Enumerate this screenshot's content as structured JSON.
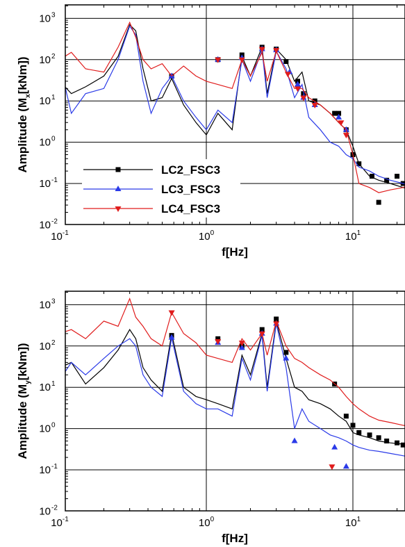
{
  "chart_data": [
    {
      "type": "line",
      "xscale": "log",
      "yscale": "log",
      "xlabel": "f[Hz]",
      "ylabel_main": "Amplitude (M",
      "ylabel_sub": "x",
      "ylabel_tail": "[kNm])",
      "xlim": [
        0.1,
        25
      ],
      "ylim": [
        0.01,
        2000
      ],
      "grid": true,
      "legend": "left-center",
      "x_ticks": [
        {
          "base": "10",
          "exp": "-1",
          "value": 0.1
        },
        {
          "base": "10",
          "exp": "0",
          "value": 1
        },
        {
          "base": "10",
          "exp": "1",
          "value": 10
        }
      ],
      "y_ticks": [
        {
          "base": "10",
          "exp": "-2",
          "value": 0.01
        },
        {
          "base": "10",
          "exp": "-1",
          "value": 0.1
        },
        {
          "base": "10",
          "exp": "0",
          "value": 1
        },
        {
          "base": "10",
          "exp": "1",
          "value": 10
        },
        {
          "base": "10",
          "exp": "2",
          "value": 100
        },
        {
          "base": "10",
          "exp": "3",
          "value": 1000
        }
      ],
      "series": [
        {
          "name": "LC2_FSC3",
          "color": "#000000",
          "marker": "square",
          "x": [
            0.1,
            0.12,
            0.15,
            0.2,
            0.25,
            0.3,
            0.33,
            0.37,
            0.42,
            0.5,
            0.58,
            0.7,
            0.85,
            1.0,
            1.2,
            1.5,
            1.75,
            2.0,
            2.4,
            2.6,
            3.0,
            3.5,
            4.0,
            4.5,
            5.0,
            6.0,
            7.0,
            8.0,
            9.0,
            10.0,
            11.0,
            13.0,
            15.0,
            18.0,
            22.0,
            25.0
          ],
          "y": [
            30,
            15,
            22,
            40,
            120,
            700,
            500,
            60,
            10,
            12,
            35,
            8,
            3,
            1.5,
            5,
            2,
            120,
            40,
            200,
            15,
            180,
            100,
            30,
            50,
            10,
            8,
            5,
            3,
            2,
            0.8,
            0.3,
            0.15,
            0.12,
            0.1,
            0.08,
            0.07
          ],
          "markers_x": [
            0.58,
            1.2,
            1.75,
            2.4,
            3.0,
            3.5,
            4.2,
            4.6,
            5.5,
            7.5,
            8.0,
            9.0,
            10.0,
            11.0,
            13.5,
            15.0,
            17.0,
            20.0,
            22.0
          ],
          "markers_y": [
            40,
            100,
            130,
            200,
            180,
            90,
            30,
            15,
            10,
            5,
            5,
            2,
            0.5,
            0.3,
            0.15,
            0.035,
            0.12,
            0.15,
            0.1
          ]
        },
        {
          "name": "LC3_FSC3",
          "color": "#2a3ae8",
          "marker": "triangle-up",
          "x": [
            0.1,
            0.12,
            0.15,
            0.2,
            0.25,
            0.3,
            0.33,
            0.37,
            0.42,
            0.5,
            0.58,
            0.7,
            0.85,
            1.0,
            1.2,
            1.5,
            1.75,
            2.0,
            2.4,
            2.6,
            3.0,
            3.5,
            4.0,
            4.5,
            5.0,
            6.0,
            7.0,
            8.0,
            9.0,
            10.0,
            11.0,
            13.0,
            15.0,
            18.0,
            22.0,
            25.0
          ],
          "y": [
            80,
            5,
            15,
            20,
            100,
            650,
            400,
            30,
            5,
            20,
            40,
            10,
            4,
            2,
            6,
            3,
            100,
            30,
            170,
            12,
            160,
            60,
            12,
            25,
            4,
            2,
            1,
            0.8,
            0.5,
            0.4,
            0.25,
            0.2,
            0.15,
            0.12,
            0.1,
            0.09
          ],
          "markers_x": [
            0.58,
            1.2,
            1.75,
            2.4,
            3.0,
            3.7,
            4.2,
            4.6,
            5.5,
            8.0,
            9.0
          ],
          "markers_y": [
            40,
            100,
            110,
            180,
            170,
            50,
            25,
            12,
            8,
            4,
            2
          ]
        },
        {
          "name": "LC4_FSC3",
          "color": "#e01c1c",
          "marker": "triangle-down",
          "x": [
            0.1,
            0.12,
            0.15,
            0.2,
            0.25,
            0.3,
            0.33,
            0.37,
            0.42,
            0.5,
            0.58,
            0.7,
            0.85,
            1.0,
            1.2,
            1.5,
            1.75,
            2.0,
            2.4,
            2.6,
            3.0,
            3.5,
            4.0,
            4.5,
            5.0,
            6.0,
            7.0,
            8.0,
            9.0,
            10.0,
            11.0,
            13.0,
            15.0,
            18.0,
            22.0,
            25.0
          ],
          "y": [
            100,
            150,
            60,
            50,
            200,
            800,
            350,
            100,
            60,
            80,
            40,
            70,
            40,
            30,
            25,
            20,
            100,
            40,
            150,
            30,
            160,
            50,
            20,
            20,
            12,
            8,
            5,
            3,
            2,
            0.5,
            0.1,
            0.08,
            0.06,
            0.07,
            0.08,
            0.1
          ],
          "markers_x": [
            1.2,
            1.75,
            2.4,
            3.0,
            3.6,
            4.2,
            4.6,
            5.5,
            8.3,
            9.0
          ],
          "markers_y": [
            100,
            100,
            180,
            170,
            45,
            20,
            12,
            8,
            3,
            1.5
          ]
        }
      ]
    },
    {
      "type": "line",
      "xscale": "log",
      "yscale": "log",
      "xlabel": "f[Hz]",
      "ylabel_main": "Amplitude (M",
      "ylabel_sub": "y",
      "ylabel_tail": "[kNm])",
      "xlim": [
        0.1,
        25
      ],
      "ylim": [
        0.01,
        2000
      ],
      "grid": true,
      "x_ticks": [
        {
          "base": "10",
          "exp": "-1",
          "value": 0.1
        },
        {
          "base": "10",
          "exp": "0",
          "value": 1
        },
        {
          "base": "10",
          "exp": "1",
          "value": 10
        }
      ],
      "y_ticks": [
        {
          "base": "10",
          "exp": "-2",
          "value": 0.01
        },
        {
          "base": "10",
          "exp": "-1",
          "value": 0.1
        },
        {
          "base": "10",
          "exp": "0",
          "value": 1
        },
        {
          "base": "10",
          "exp": "1",
          "value": 10
        },
        {
          "base": "10",
          "exp": "2",
          "value": 100
        },
        {
          "base": "10",
          "exp": "3",
          "value": 1000
        }
      ],
      "series": [
        {
          "name": "LC2_FSC3",
          "color": "#000000",
          "marker": "square",
          "x": [
            0.1,
            0.12,
            0.15,
            0.2,
            0.25,
            0.3,
            0.33,
            0.37,
            0.42,
            0.5,
            0.58,
            0.7,
            0.85,
            1.0,
            1.2,
            1.5,
            1.75,
            2.0,
            2.4,
            2.6,
            3.0,
            3.5,
            4.0,
            4.5,
            5.0,
            6.0,
            7.0,
            8.0,
            9.0,
            10.0,
            11.0,
            13.0,
            15.0,
            18.0,
            22.0,
            25.0
          ],
          "y": [
            30,
            40,
            12,
            30,
            80,
            250,
            150,
            30,
            15,
            8,
            200,
            10,
            6,
            5,
            4,
            3,
            60,
            20,
            200,
            10,
            400,
            50,
            10,
            8,
            5,
            4,
            3,
            2,
            1.5,
            0.8,
            0.7,
            0.6,
            0.5,
            0.45,
            0.42,
            0.4
          ],
          "markers_x": [
            0.58,
            1.2,
            1.75,
            2.4,
            3.0,
            3.5,
            7.5,
            9.0,
            10.0,
            11.0,
            13.0,
            15.0,
            17.0,
            20.0,
            22.0
          ],
          "markers_y": [
            180,
            150,
            100,
            250,
            450,
            70,
            12,
            2,
            1.2,
            0.8,
            0.7,
            0.6,
            0.5,
            0.45,
            0.4
          ]
        },
        {
          "name": "LC3_FSC3",
          "color": "#2a3ae8",
          "marker": "triangle-up",
          "x": [
            0.1,
            0.12,
            0.15,
            0.2,
            0.25,
            0.3,
            0.33,
            0.37,
            0.42,
            0.5,
            0.58,
            0.7,
            0.85,
            1.0,
            1.2,
            1.5,
            1.75,
            2.0,
            2.4,
            2.6,
            3.0,
            3.5,
            4.0,
            4.5,
            5.0,
            6.0,
            7.0,
            8.0,
            9.0,
            10.0,
            11.0,
            13.0,
            15.0,
            18.0,
            22.0,
            25.0
          ],
          "y": [
            15,
            40,
            20,
            50,
            100,
            150,
            100,
            20,
            10,
            6,
            160,
            8,
            4,
            3,
            3,
            2,
            50,
            15,
            180,
            8,
            350,
            30,
            1,
            3,
            1.5,
            1,
            0.7,
            0.6,
            0.5,
            0.4,
            0.35,
            0.3,
            0.28,
            0.25,
            0.22,
            0.2
          ],
          "markers_x": [
            0.58,
            1.2,
            1.75,
            2.4,
            3.0,
            3.5,
            4.0,
            7.5,
            9.0
          ],
          "markers_y": [
            160,
            120,
            90,
            200,
            350,
            50,
            0.5,
            0.35,
            0.12
          ]
        },
        {
          "name": "LC4_FSC3",
          "color": "#e01c1c",
          "marker": "triangle-down",
          "x": [
            0.1,
            0.12,
            0.15,
            0.2,
            0.25,
            0.3,
            0.33,
            0.37,
            0.42,
            0.5,
            0.58,
            0.7,
            0.85,
            1.0,
            1.2,
            1.5,
            1.75,
            2.0,
            2.4,
            2.6,
            3.0,
            3.5,
            4.0,
            4.5,
            5.0,
            6.0,
            7.0,
            8.0,
            9.0,
            10.0,
            11.0,
            13.0,
            15.0,
            18.0,
            22.0,
            25.0
          ],
          "y": [
            200,
            250,
            150,
            400,
            300,
            1400,
            500,
            300,
            150,
            100,
            650,
            200,
            120,
            60,
            50,
            40,
            150,
            80,
            200,
            60,
            400,
            100,
            50,
            40,
            30,
            20,
            15,
            10,
            6,
            4,
            3,
            2,
            1.6,
            1.4,
            1.2,
            1.1
          ],
          "markers_x": [
            0.58,
            1.2,
            1.75,
            2.4,
            3.0,
            7.2
          ],
          "markers_y": [
            650,
            130,
            120,
            200,
            350,
            0.12
          ]
        }
      ]
    }
  ]
}
